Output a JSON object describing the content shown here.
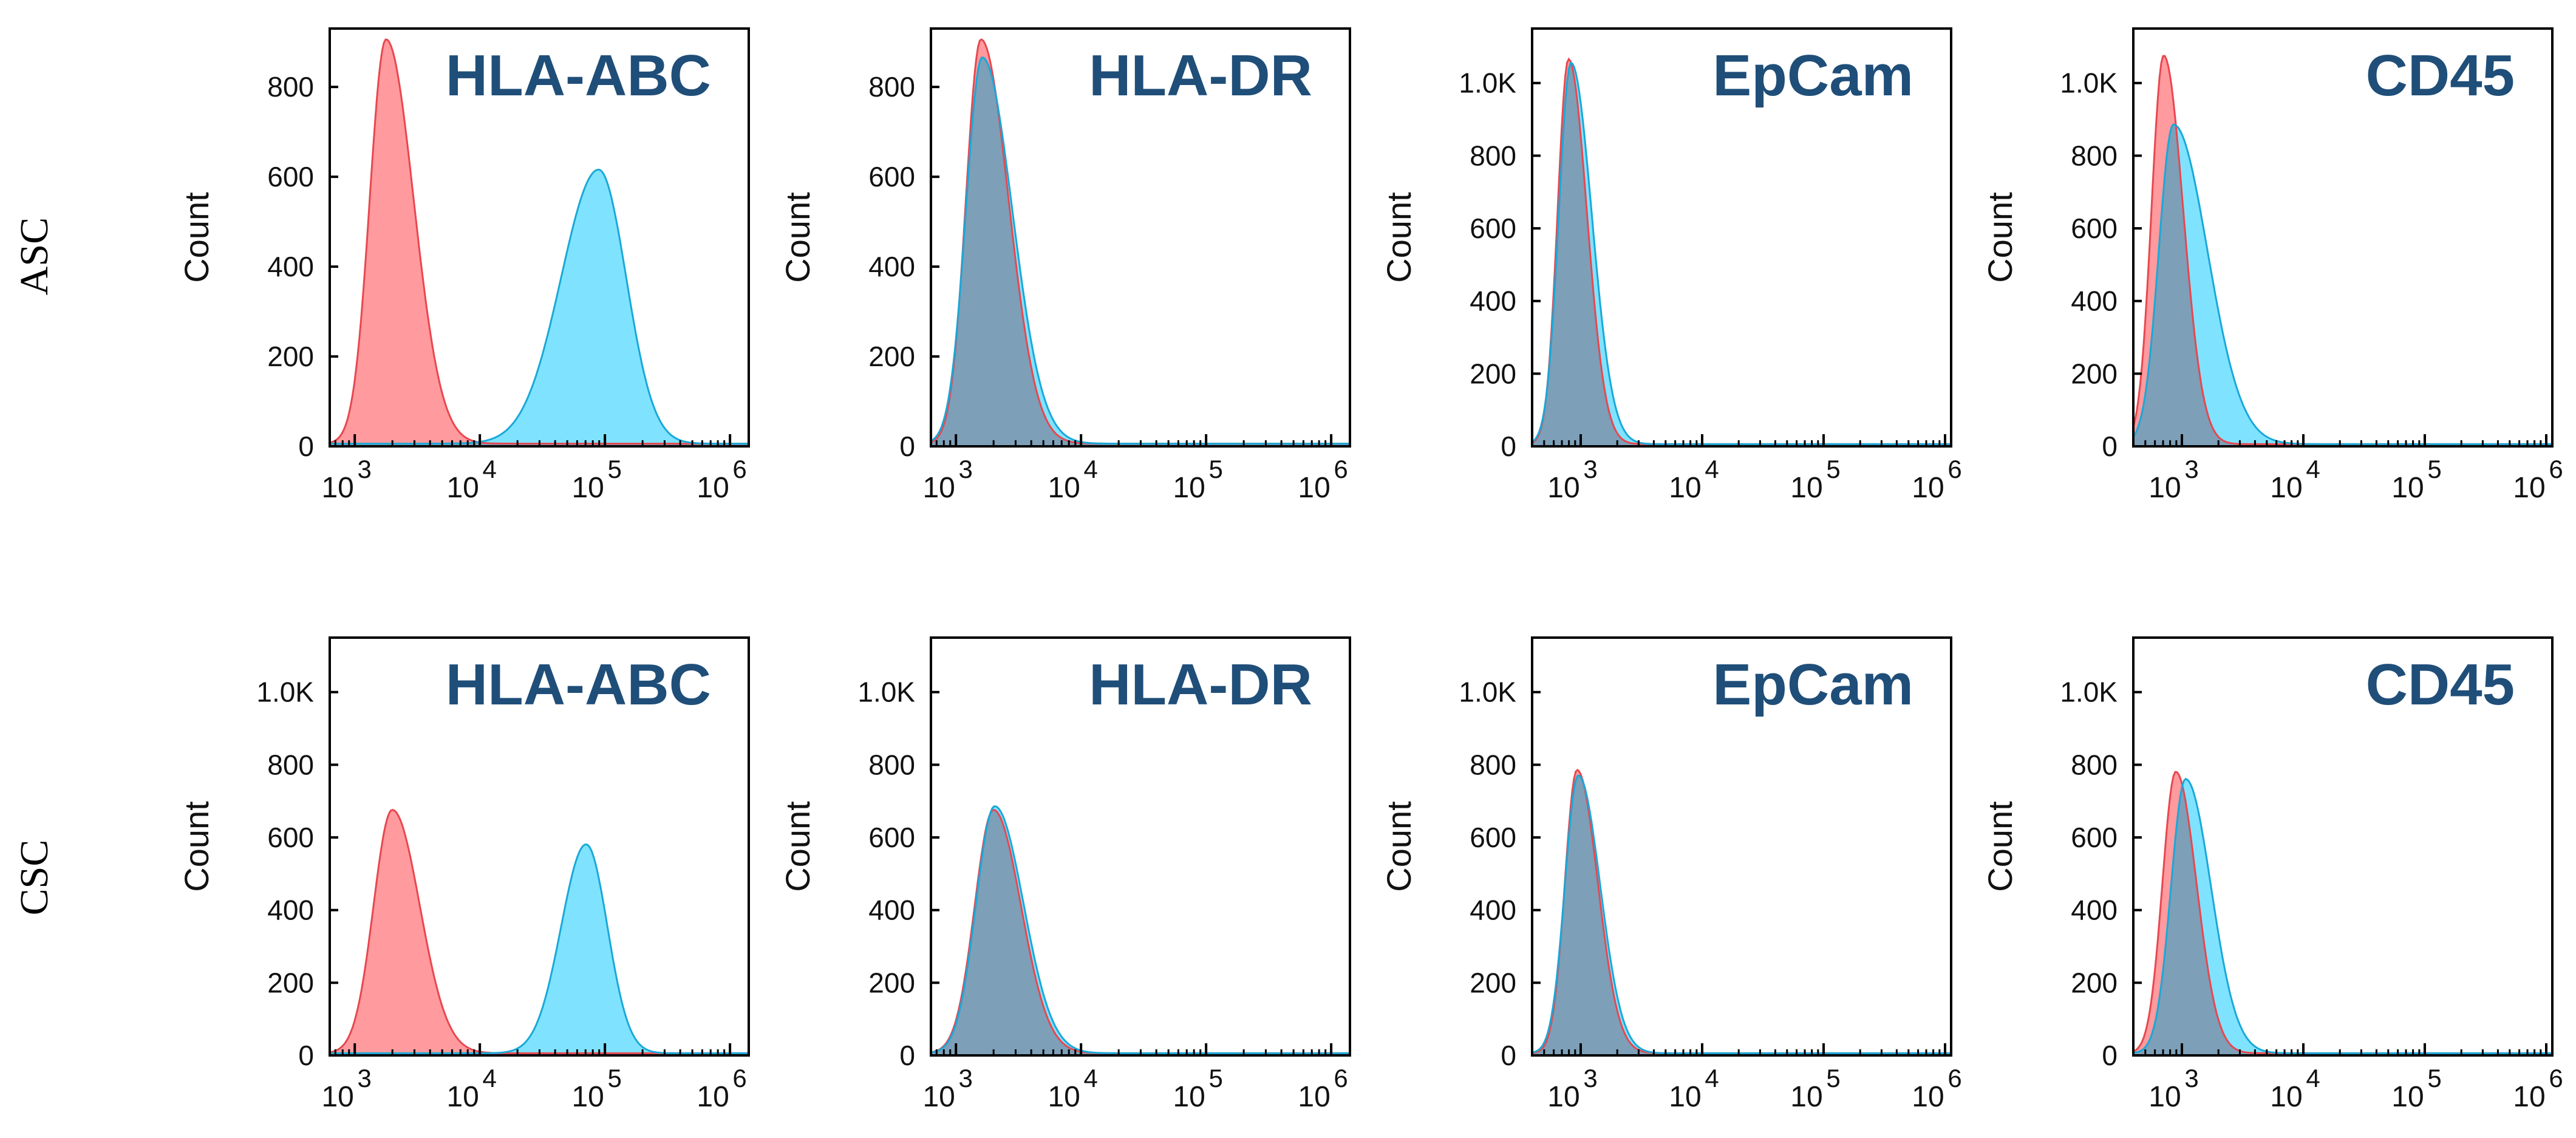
{
  "colors": {
    "isotype_fill": "#ff9a9e",
    "isotype_line": "#e8474f",
    "stain_fill": "#7fe3ff",
    "stain_line": "#1aa8d8",
    "overlap_fill": "#7d9fb8",
    "title_color": "#1f4e79"
  },
  "rows": [
    {
      "label": "ASC"
    },
    {
      "label": "CSC"
    }
  ],
  "chart_data": [
    {
      "type": "area",
      "row": 0,
      "col": 0,
      "title": "HLA-ABC",
      "ylabel": "Count",
      "xscale": "log",
      "xlim": [
        2.8,
        6.15
      ],
      "ylim": [
        0,
        930
      ],
      "yticks": [
        0,
        200,
        400,
        600,
        800
      ],
      "ytick_labels": [
        "0",
        "200",
        "400",
        "600",
        "800"
      ],
      "xticks": [
        3,
        4,
        5,
        6
      ],
      "xtick_labels": [
        "10^3",
        "10^4",
        "10^5",
        "10^6"
      ],
      "series": [
        {
          "role": "isotype",
          "peak_log": 3.25,
          "peak_count": 900,
          "sigma_left": 0.13,
          "sigma_right": 0.22
        },
        {
          "role": "stain",
          "peak_log": 4.95,
          "peak_count": 610,
          "sigma_left": 0.3,
          "sigma_right": 0.22
        }
      ]
    },
    {
      "type": "area",
      "row": 0,
      "col": 1,
      "title": "HLA-DR",
      "ylabel": "Count",
      "xscale": "log",
      "xlim": [
        2.8,
        6.15
      ],
      "ylim": [
        0,
        930
      ],
      "yticks": [
        0,
        200,
        400,
        600,
        800
      ],
      "ytick_labels": [
        "0",
        "200",
        "400",
        "600",
        "800"
      ],
      "xticks": [
        3,
        4,
        5,
        6
      ],
      "xtick_labels": [
        "10^3",
        "10^4",
        "10^5",
        "10^6"
      ],
      "series": [
        {
          "role": "isotype",
          "peak_log": 3.2,
          "peak_count": 900,
          "sigma_left": 0.12,
          "sigma_right": 0.22
        },
        {
          "role": "stain",
          "peak_log": 3.21,
          "peak_count": 860,
          "sigma_left": 0.13,
          "sigma_right": 0.24
        }
      ]
    },
    {
      "type": "area",
      "row": 0,
      "col": 2,
      "title": "EpCam",
      "ylabel": "Count",
      "xscale": "log",
      "xlim": [
        2.6,
        6.05
      ],
      "ylim": [
        0,
        1150
      ],
      "yticks": [
        0,
        200,
        400,
        600,
        800,
        1000
      ],
      "ytick_labels": [
        "0",
        "200",
        "400",
        "600",
        "800",
        "1.0K"
      ],
      "xticks": [
        3,
        4,
        5,
        6
      ],
      "xtick_labels": [
        "10^3",
        "10^4",
        "10^5",
        "10^6"
      ],
      "series": [
        {
          "role": "isotype",
          "peak_log": 2.9,
          "peak_count": 1060,
          "sigma_left": 0.09,
          "sigma_right": 0.15
        },
        {
          "role": "stain",
          "peak_log": 2.92,
          "peak_count": 1050,
          "sigma_left": 0.1,
          "sigma_right": 0.17
        }
      ]
    },
    {
      "type": "area",
      "row": 0,
      "col": 3,
      "title": "CD45",
      "ylabel": "Count",
      "xscale": "log",
      "xlim": [
        2.6,
        6.05
      ],
      "ylim": [
        0,
        1150
      ],
      "yticks": [
        0,
        200,
        400,
        600,
        800,
        1000
      ],
      "ytick_labels": [
        "0",
        "200",
        "400",
        "600",
        "800",
        "1.0K"
      ],
      "xticks": [
        3,
        4,
        5,
        6
      ],
      "xtick_labels": [
        "10^3",
        "10^4",
        "10^5",
        "10^6"
      ],
      "series": [
        {
          "role": "isotype",
          "peak_log": 2.85,
          "peak_count": 1070,
          "sigma_left": 0.1,
          "sigma_right": 0.16
        },
        {
          "role": "stain",
          "peak_log": 2.93,
          "peak_count": 880,
          "sigma_left": 0.12,
          "sigma_right": 0.28
        }
      ]
    },
    {
      "type": "area",
      "row": 1,
      "col": 0,
      "title": "HLA-ABC",
      "ylabel": "Count",
      "xscale": "log",
      "xlim": [
        2.8,
        6.15
      ],
      "ylim": [
        0,
        1150
      ],
      "yticks": [
        0,
        200,
        400,
        600,
        800,
        1000
      ],
      "ytick_labels": [
        "0",
        "200",
        "400",
        "600",
        "800",
        "1.0K"
      ],
      "xticks": [
        3,
        4,
        5,
        6
      ],
      "xtick_labels": [
        "10^3",
        "10^4",
        "10^5",
        "10^6"
      ],
      "series": [
        {
          "role": "isotype",
          "peak_log": 3.3,
          "peak_count": 670,
          "sigma_left": 0.15,
          "sigma_right": 0.22
        },
        {
          "role": "stain",
          "peak_log": 4.85,
          "peak_count": 575,
          "sigma_left": 0.2,
          "sigma_right": 0.17
        }
      ]
    },
    {
      "type": "area",
      "row": 1,
      "col": 1,
      "title": "HLA-DR",
      "ylabel": "Count",
      "xscale": "log",
      "xlim": [
        2.8,
        6.15
      ],
      "ylim": [
        0,
        1150
      ],
      "yticks": [
        0,
        200,
        400,
        600,
        800,
        1000
      ],
      "ytick_labels": [
        "0",
        "200",
        "400",
        "600",
        "800",
        "1.0K"
      ],
      "xticks": [
        3,
        4,
        5,
        6
      ],
      "xtick_labels": [
        "10^3",
        "10^4",
        "10^5",
        "10^6"
      ],
      "series": [
        {
          "role": "isotype",
          "peak_log": 3.3,
          "peak_count": 670,
          "sigma_left": 0.15,
          "sigma_right": 0.22
        },
        {
          "role": "stain",
          "peak_log": 3.31,
          "peak_count": 680,
          "sigma_left": 0.15,
          "sigma_right": 0.23
        }
      ]
    },
    {
      "type": "area",
      "row": 1,
      "col": 2,
      "title": "EpCam",
      "ylabel": "Count",
      "xscale": "log",
      "xlim": [
        2.6,
        6.05
      ],
      "ylim": [
        0,
        1150
      ],
      "yticks": [
        0,
        200,
        400,
        600,
        800,
        1000
      ],
      "ytick_labels": [
        "0",
        "200",
        "400",
        "600",
        "800",
        "1.0K"
      ],
      "xticks": [
        3,
        4,
        5,
        6
      ],
      "xtick_labels": [
        "10^3",
        "10^4",
        "10^5",
        "10^6"
      ],
      "series": [
        {
          "role": "isotype",
          "peak_log": 2.97,
          "peak_count": 780,
          "sigma_left": 0.1,
          "sigma_right": 0.17
        },
        {
          "role": "stain",
          "peak_log": 2.98,
          "peak_count": 765,
          "sigma_left": 0.11,
          "sigma_right": 0.18
        }
      ]
    },
    {
      "type": "area",
      "row": 1,
      "col": 3,
      "title": "CD45",
      "ylabel": "Count",
      "xscale": "log",
      "xlim": [
        2.6,
        6.05
      ],
      "ylim": [
        0,
        1150
      ],
      "yticks": [
        0,
        200,
        400,
        600,
        800,
        1000
      ],
      "ytick_labels": [
        "0",
        "200",
        "400",
        "600",
        "800",
        "1.0K"
      ],
      "xticks": [
        3,
        4,
        5,
        6
      ],
      "xtick_labels": [
        "10^3",
        "10^4",
        "10^5",
        "10^6"
      ],
      "series": [
        {
          "role": "isotype",
          "peak_log": 2.95,
          "peak_count": 775,
          "sigma_left": 0.11,
          "sigma_right": 0.17
        },
        {
          "role": "stain",
          "peak_log": 3.03,
          "peak_count": 755,
          "sigma_left": 0.12,
          "sigma_right": 0.21
        }
      ]
    }
  ]
}
